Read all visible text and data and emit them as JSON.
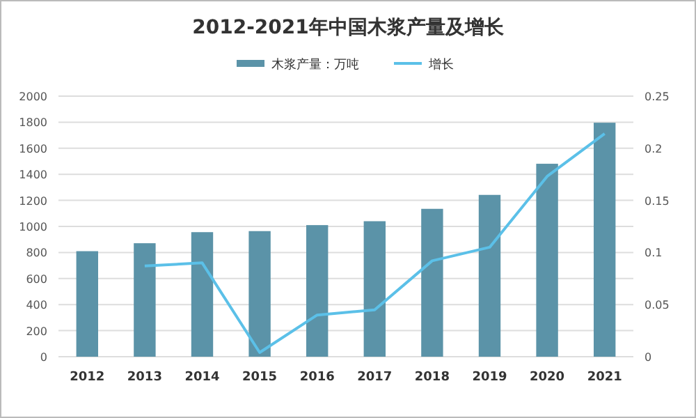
{
  "chart_data": {
    "type": "bar",
    "title": "2012-2021年中国木浆产量及增长",
    "categories": [
      "2012",
      "2013",
      "2014",
      "2015",
      "2016",
      "2017",
      "2018",
      "2019",
      "2020",
      "2021"
    ],
    "series": [
      {
        "name": "木浆产量：万吨",
        "color": "#5b93a8",
        "values": [
          810,
          871,
          956,
          964,
          1010,
          1040,
          1135,
          1242,
          1481,
          1796
        ]
      },
      {
        "name": "增长",
        "type": "line",
        "axis": "y2",
        "color": "#5bc0e8",
        "values": [
          null,
          0.087,
          0.09,
          0.004,
          0.04,
          0.045,
          0.092,
          0.105,
          0.173,
          0.214
        ]
      }
    ],
    "ylim": [
      0,
      2000
    ],
    "yticks": [
      0,
      200,
      400,
      600,
      800,
      1000,
      1200,
      1400,
      1600,
      1800,
      2000
    ],
    "y2lim": [
      0,
      0.25
    ],
    "y2ticks": [
      0,
      0.05,
      0.1,
      0.15,
      0.2,
      0.25
    ],
    "grid": "y",
    "legend": "top",
    "marker": "none"
  }
}
